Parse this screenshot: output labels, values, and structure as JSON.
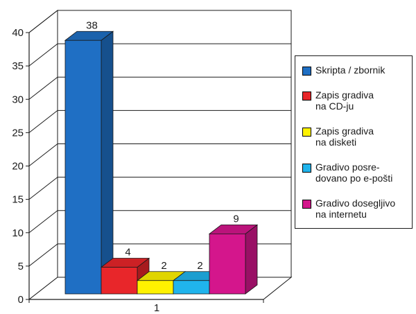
{
  "chart_data": {
    "type": "bar",
    "categories": [
      "1"
    ],
    "series": [
      {
        "name": "Skripta / zbornik",
        "values": [
          38
        ],
        "color": "#1f6fc4"
      },
      {
        "name": "Zapis gradiva\nna CD-ju",
        "values": [
          4
        ],
        "color": "#e8262a"
      },
      {
        "name": "Zapis gradiva\nna disketi",
        "values": [
          2
        ],
        "color": "#fff200"
      },
      {
        "name": "Gradivo posre-\ndovano po e-pošti",
        "values": [
          2
        ],
        "color": "#20b4ec"
      },
      {
        "name": "Gradivo dosegljivo\nna internetu",
        "values": [
          9
        ],
        "color": "#d4168c"
      }
    ],
    "ylim": [
      0,
      40
    ],
    "y_ticks": [
      "0",
      "5",
      "10",
      "15",
      "20",
      "25",
      "30",
      "35",
      "40"
    ],
    "grid": true,
    "legend": "right",
    "style": "3d"
  }
}
